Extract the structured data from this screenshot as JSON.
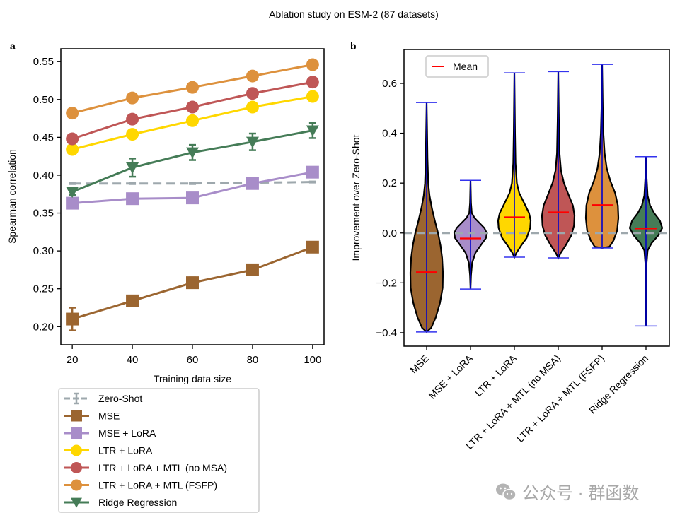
{
  "figure": {
    "suptitle": "Ablation study on ESM-2 (87 datasets)",
    "watermark": "公众号 · 群函数",
    "watermark_icon": "wechat-icon"
  },
  "chart_data": [
    {
      "panel": "a",
      "type": "line",
      "title": "",
      "xlabel": "Training data size",
      "ylabel": "Spearman correlation",
      "x": [
        20,
        40,
        60,
        80,
        100
      ],
      "xlim": [
        16.2,
        103.8
      ],
      "ylim": [
        0.176,
        0.567
      ],
      "xticks": [
        20,
        40,
        60,
        80,
        100
      ],
      "xtick_labels": [
        "20",
        "40",
        "60",
        "80",
        "100"
      ],
      "yticks": [
        0.2,
        0.25,
        0.3,
        0.35,
        0.4,
        0.45,
        0.5,
        0.55
      ],
      "ytick_labels": [
        "0.20",
        "0.25",
        "0.30",
        "0.35",
        "0.40",
        "0.45",
        "0.50",
        "0.55"
      ],
      "grid": false,
      "legend_position": "below-left, outside plot",
      "series": [
        {
          "name": "Zero-Shot",
          "color": "#9ea8ad",
          "marker": "none",
          "linestyle": "dashed",
          "values": [
            0.389,
            0.389,
            0.389,
            0.39,
            0.391
          ],
          "errors": [
            0,
            0,
            0,
            0,
            0
          ]
        },
        {
          "name": "MSE",
          "color": "#9b6530",
          "marker": "square",
          "linestyle": "solid",
          "values": [
            0.21,
            0.234,
            0.258,
            0.275,
            0.305
          ],
          "errors": [
            0.015,
            0.003,
            0.007,
            0.007,
            0.003
          ]
        },
        {
          "name": "MSE + LoRA",
          "color": "#a88dc9",
          "marker": "square",
          "linestyle": "solid",
          "values": [
            0.363,
            0.369,
            0.37,
            0.389,
            0.404
          ],
          "errors": [
            0.004,
            0.006,
            0.006,
            0.006,
            0.003
          ]
        },
        {
          "name": "LTR + LoRA",
          "color": "#ffd700",
          "marker": "circle",
          "linestyle": "solid",
          "values": [
            0.434,
            0.454,
            0.472,
            0.49,
            0.504
          ],
          "errors": [
            0.002,
            0.002,
            0.002,
            0.002,
            0.002
          ]
        },
        {
          "name": "LTR + LoRA + MTL (no MSA)",
          "color": "#bf5656",
          "marker": "circle",
          "linestyle": "solid",
          "values": [
            0.448,
            0.474,
            0.49,
            0.508,
            0.523
          ],
          "errors": [
            0.002,
            0.002,
            0.002,
            0.002,
            0.002
          ]
        },
        {
          "name": "LTR + LoRA + MTL (FSFP)",
          "color": "#dd913d",
          "marker": "circle",
          "linestyle": "solid",
          "values": [
            0.482,
            0.502,
            0.516,
            0.531,
            0.546
          ],
          "errors": [
            0.002,
            0.002,
            0.002,
            0.002,
            0.002
          ]
        },
        {
          "name": "Ridge Regression",
          "color": "#457c57",
          "marker": "triangle-down",
          "linestyle": "solid",
          "values": [
            0.378,
            0.41,
            0.43,
            0.444,
            0.459
          ],
          "errors": [
            0.004,
            0.012,
            0.01,
            0.011,
            0.01
          ]
        }
      ]
    },
    {
      "panel": "b",
      "type": "violin",
      "title": "",
      "xlabel": "",
      "ylabel": "Improvement over Zero-Shot",
      "ylim": [
        -0.454,
        0.736
      ],
      "yticks": [
        -0.4,
        -0.2,
        0.0,
        0.2,
        0.4,
        0.6
      ],
      "ytick_labels": [
        "−0.4",
        "−0.2",
        "0.0",
        "0.2",
        "0.4",
        "0.6"
      ],
      "grid": false,
      "reference_line": {
        "value": 0.0,
        "color": "#9ea8ad",
        "style": "dashed"
      },
      "legend": {
        "position": "top-left",
        "entries": [
          {
            "label": "Mean",
            "color": "#ff0000"
          }
        ]
      },
      "extrema_color": "#0000cc",
      "mean_color": "#ff0000",
      "categories": [
        "MSE",
        "MSE + LoRA",
        "LTR + LoRA",
        "LTR + LoRA + MTL (no MSA)",
        "LTR + LoRA + MTL (FSFP)",
        "Ridge Regression"
      ],
      "series": [
        {
          "name": "MSE",
          "color": "#9b6530",
          "min": -0.397,
          "max": 0.523,
          "mean": -0.157,
          "density": [
            [
              -0.397,
              0.0
            ],
            [
              -0.38,
              0.28
            ],
            [
              -0.34,
              0.55
            ],
            [
              -0.28,
              0.82
            ],
            [
              -0.22,
              0.98
            ],
            [
              -0.16,
              1.0
            ],
            [
              -0.1,
              0.95
            ],
            [
              -0.05,
              0.85
            ],
            [
              0.0,
              0.7
            ],
            [
              0.05,
              0.5
            ],
            [
              0.1,
              0.32
            ],
            [
              0.15,
              0.18
            ],
            [
              0.2,
              0.1
            ],
            [
              0.3,
              0.05
            ],
            [
              0.4,
              0.03
            ],
            [
              0.523,
              0.0
            ]
          ]
        },
        {
          "name": "MSE + LoRA",
          "color": "#a88dc9",
          "min": -0.225,
          "max": 0.211,
          "mean": -0.022,
          "density": [
            [
              -0.225,
              0.0
            ],
            [
              -0.17,
              0.03
            ],
            [
              -0.12,
              0.1
            ],
            [
              -0.08,
              0.3
            ],
            [
              -0.05,
              0.62
            ],
            [
              -0.02,
              0.95
            ],
            [
              0.0,
              1.0
            ],
            [
              0.02,
              0.85
            ],
            [
              0.04,
              0.55
            ],
            [
              0.06,
              0.25
            ],
            [
              0.08,
              0.08
            ],
            [
              0.12,
              0.03
            ],
            [
              0.211,
              0.0
            ]
          ]
        },
        {
          "name": "LTR + LoRA",
          "color": "#ffd700",
          "min": -0.097,
          "max": 0.642,
          "mean": 0.063,
          "density": [
            [
              -0.097,
              0.0
            ],
            [
              -0.08,
              0.12
            ],
            [
              -0.05,
              0.42
            ],
            [
              -0.02,
              0.75
            ],
            [
              0.02,
              0.97
            ],
            [
              0.05,
              1.0
            ],
            [
              0.08,
              0.9
            ],
            [
              0.12,
              0.6
            ],
            [
              0.16,
              0.3
            ],
            [
              0.2,
              0.15
            ],
            [
              0.28,
              0.07
            ],
            [
              0.4,
              0.04
            ],
            [
              0.642,
              0.0
            ]
          ]
        },
        {
          "name": "LTR + LoRA + MTL (no MSA)",
          "color": "#bf5656",
          "min": -0.1,
          "max": 0.647,
          "mean": 0.083,
          "density": [
            [
              -0.1,
              0.0
            ],
            [
              -0.08,
              0.15
            ],
            [
              -0.05,
              0.45
            ],
            [
              -0.01,
              0.8
            ],
            [
              0.03,
              0.97
            ],
            [
              0.07,
              1.0
            ],
            [
              0.11,
              0.9
            ],
            [
              0.15,
              0.65
            ],
            [
              0.2,
              0.35
            ],
            [
              0.25,
              0.17
            ],
            [
              0.32,
              0.08
            ],
            [
              0.45,
              0.04
            ],
            [
              0.647,
              0.0
            ]
          ]
        },
        {
          "name": "LTR + LoRA + MTL (FSFP)",
          "color": "#dd913d",
          "min": -0.06,
          "max": 0.676,
          "mean": 0.112,
          "density": [
            [
              -0.06,
              0.0
            ],
            [
              -0.055,
              0.45
            ],
            [
              -0.03,
              0.7
            ],
            [
              0.01,
              0.92
            ],
            [
              0.06,
              1.0
            ],
            [
              0.11,
              0.97
            ],
            [
              0.16,
              0.8
            ],
            [
              0.21,
              0.5
            ],
            [
              0.26,
              0.28
            ],
            [
              0.32,
              0.15
            ],
            [
              0.4,
              0.08
            ],
            [
              0.5,
              0.04
            ],
            [
              0.676,
              0.0
            ]
          ]
        },
        {
          "name": "Ridge Regression",
          "color": "#457c57",
          "min": -0.373,
          "max": 0.306,
          "mean": 0.018,
          "density": [
            [
              -0.373,
              0.0
            ],
            [
              -0.25,
              0.02
            ],
            [
              -0.12,
              0.04
            ],
            [
              -0.07,
              0.1
            ],
            [
              -0.04,
              0.35
            ],
            [
              -0.01,
              0.75
            ],
            [
              0.02,
              1.0
            ],
            [
              0.05,
              0.85
            ],
            [
              0.08,
              0.5
            ],
            [
              0.11,
              0.25
            ],
            [
              0.15,
              0.1
            ],
            [
              0.22,
              0.04
            ],
            [
              0.306,
              0.0
            ]
          ]
        }
      ]
    }
  ]
}
